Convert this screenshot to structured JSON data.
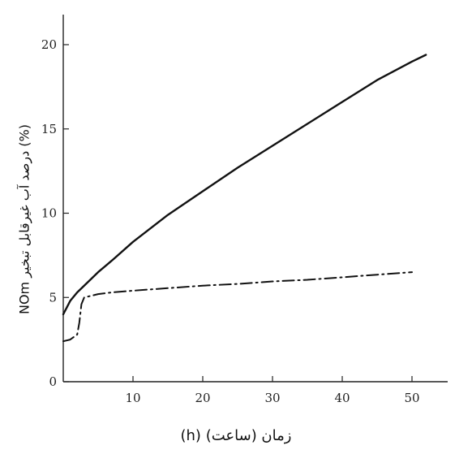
{
  "chart_data": {
    "type": "line",
    "xlabel": "(h) زمان (ساعت)",
    "ylabel": "NOm درصد آب غیرقابل تبخیر (%)",
    "xlim": [
      0,
      55
    ],
    "ylim": [
      0,
      22
    ],
    "x_ticks": [
      "10",
      "20",
      "30",
      "40",
      "50"
    ],
    "y_ticks": [
      "0",
      "5",
      "10",
      "15",
      "20"
    ],
    "grid": false,
    "series": [
      {
        "style": "solid",
        "color": "#111111",
        "x": [
          0,
          1,
          2,
          3,
          5,
          7,
          10,
          15,
          20,
          25,
          30,
          35,
          40,
          45,
          50,
          52
        ],
        "y": [
          4.0,
          4.8,
          5.3,
          5.7,
          6.5,
          7.2,
          8.3,
          9.9,
          11.3,
          12.7,
          14.0,
          15.3,
          16.6,
          17.9,
          19.0,
          19.4
        ]
      },
      {
        "style": "dash-dot",
        "color": "#111111",
        "x": [
          0,
          1,
          2,
          2.3,
          2.6,
          3,
          4,
          5,
          7,
          10,
          15,
          20,
          25,
          30,
          35,
          40,
          45,
          50
        ],
        "y": [
          2.4,
          2.5,
          2.8,
          3.5,
          4.6,
          5.0,
          5.1,
          5.2,
          5.3,
          5.4,
          5.55,
          5.7,
          5.8,
          5.95,
          6.05,
          6.2,
          6.35,
          6.5
        ]
      }
    ]
  }
}
